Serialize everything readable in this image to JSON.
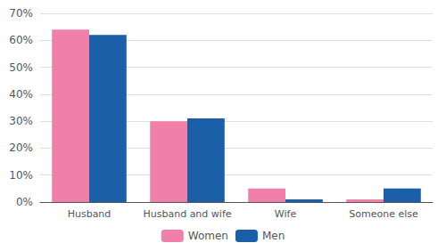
{
  "chart_data": {
    "type": "bar",
    "categories": [
      "Husband",
      "Husband and wife",
      "Wife",
      "Someone else"
    ],
    "series": [
      {
        "name": "Women",
        "color": "#F080A8",
        "values": [
          64,
          30,
          5,
          1
        ]
      },
      {
        "name": "Men",
        "color": "#1B5FA8",
        "values": [
          62,
          31,
          1,
          5
        ]
      }
    ],
    "ylim": [
      0,
      70
    ],
    "yticks": [
      {
        "value": 0,
        "label": "0%"
      },
      {
        "value": 10,
        "label": "10%"
      },
      {
        "value": 20,
        "label": "20%"
      },
      {
        "value": 30,
        "label": "30%"
      },
      {
        "value": 40,
        "label": "40%"
      },
      {
        "value": 50,
        "label": "50%"
      },
      {
        "value": 60,
        "label": "60%"
      },
      {
        "value": 70,
        "label": "70%"
      }
    ],
    "grid": true,
    "legend": "bottom"
  }
}
